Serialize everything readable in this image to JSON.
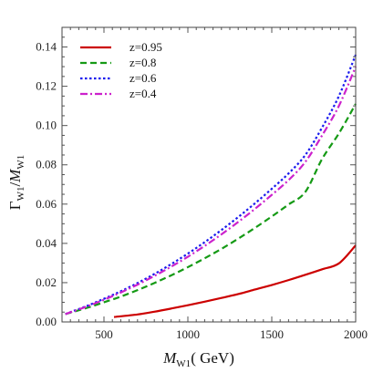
{
  "chart_data": {
    "type": "line",
    "title": "",
    "xlabel": {
      "main": "M",
      "sub": "W1",
      "unit": "( GeV)"
    },
    "ylabel": {
      "gamma": "Γ",
      "sub1": "W1",
      "slash": "/",
      "m": "M",
      "sub2": "W1"
    },
    "xlim": [
      250,
      2000
    ],
    "ylim": [
      0,
      0.15
    ],
    "x_ticks": [
      500,
      1000,
      1500,
      2000
    ],
    "y_ticks": [
      0.0,
      0.02,
      0.04,
      0.06,
      0.08,
      0.1,
      0.12,
      0.14
    ],
    "y_tick_labels": [
      "0.00",
      "0.02",
      "0.04",
      "0.06",
      "0.08",
      "0.10",
      "0.12",
      "0.14"
    ],
    "legend_position": "top-left",
    "grid": false,
    "series": [
      {
        "name": "z=0.95",
        "color": "#cc0000",
        "dash": "solid",
        "x": [
          560,
          700,
          800,
          900,
          1000,
          1100,
          1200,
          1300,
          1400,
          1500,
          1600,
          1700,
          1800,
          1900,
          2000
        ],
        "y": [
          0.0025,
          0.0038,
          0.0052,
          0.0068,
          0.0085,
          0.0103,
          0.0122,
          0.0142,
          0.0165,
          0.0188,
          0.0213,
          0.024,
          0.0268,
          0.0298,
          0.039
        ]
      },
      {
        "name": "z=0.8",
        "color": "#159a15",
        "dash": "dashed",
        "x": [
          270,
          300,
          400,
          500,
          600,
          700,
          800,
          900,
          1000,
          1100,
          1200,
          1300,
          1400,
          1500,
          1600,
          1700,
          1800,
          1900,
          2000
        ],
        "y": [
          0.004,
          0.0047,
          0.0072,
          0.01,
          0.0129,
          0.0162,
          0.0198,
          0.0237,
          0.0279,
          0.0324,
          0.0372,
          0.0424,
          0.0479,
          0.0537,
          0.0598,
          0.0662,
          0.083,
          0.096,
          0.111
        ]
      },
      {
        "name": "z=0.6",
        "color": "#1a1aee",
        "dash": "dotted",
        "x": [
          270,
          300,
          400,
          500,
          600,
          700,
          800,
          900,
          1000,
          1100,
          1200,
          1300,
          1400,
          1500,
          1600,
          1700,
          1800,
          1900,
          2000
        ],
        "y": [
          0.004,
          0.005,
          0.0082,
          0.0118,
          0.0156,
          0.0198,
          0.0244,
          0.0294,
          0.0348,
          0.0406,
          0.0468,
          0.0534,
          0.0604,
          0.0678,
          0.0756,
          0.085,
          0.099,
          0.115,
          0.136
        ]
      },
      {
        "name": "z=0.4",
        "color": "#cc22cc",
        "dash": "dashdot",
        "x": [
          270,
          300,
          400,
          500,
          600,
          700,
          800,
          900,
          1000,
          1100,
          1200,
          1300,
          1400,
          1500,
          1600,
          1700,
          1800,
          1900,
          2000
        ],
        "y": [
          0.004,
          0.0049,
          0.0079,
          0.0113,
          0.015,
          0.019,
          0.0234,
          0.0281,
          0.0332,
          0.0387,
          0.0446,
          0.0509,
          0.0576,
          0.0647,
          0.0722,
          0.0815,
          0.095,
          0.11,
          0.13
        ]
      }
    ]
  }
}
